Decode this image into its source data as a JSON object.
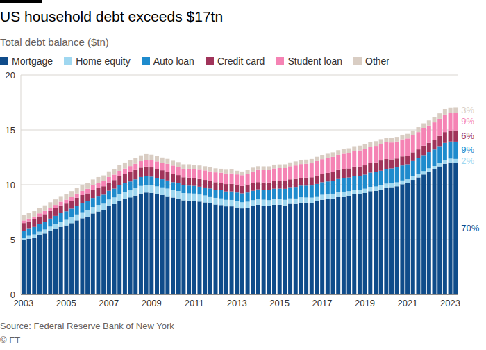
{
  "chart_data": {
    "type": "bar",
    "stacked": true,
    "grid": true,
    "title": "US household debt exceeds $17tn",
    "subtitle": "Total debt balance ($tn)",
    "source": "Source: Federal Reserve Bank of New York",
    "copyright": "© FT",
    "categories": [
      "2003",
      null,
      null,
      null,
      null,
      null,
      null,
      null,
      "2005",
      null,
      null,
      null,
      null,
      null,
      null,
      null,
      "2007",
      null,
      null,
      null,
      null,
      null,
      null,
      null,
      "2009",
      null,
      null,
      null,
      null,
      null,
      null,
      null,
      "2011",
      null,
      null,
      null,
      null,
      null,
      null,
      null,
      "2013",
      null,
      null,
      null,
      null,
      null,
      null,
      null,
      "2015",
      null,
      null,
      null,
      null,
      null,
      null,
      null,
      "2017",
      null,
      null,
      null,
      null,
      null,
      null,
      null,
      "2019",
      null,
      null,
      null,
      null,
      null,
      null,
      null,
      "2021",
      null,
      null,
      null,
      null,
      null,
      null,
      null,
      "2023",
      null
    ],
    "ylim": [
      0,
      20
    ],
    "yticks": [
      0,
      5,
      10,
      15,
      20
    ],
    "series": [
      {
        "name": "Mortgage",
        "color": "#0f4c8a",
        "values": [
          4.94,
          5.08,
          5.18,
          5.39,
          5.55,
          5.77,
          5.97,
          6.16,
          6.29,
          6.5,
          6.75,
          6.94,
          7.11,
          7.38,
          7.56,
          7.67,
          8.05,
          8.23,
          8.52,
          8.68,
          8.84,
          9.01,
          9.2,
          9.29,
          9.25,
          9.14,
          9.06,
          8.95,
          8.83,
          8.75,
          8.57,
          8.55,
          8.54,
          8.46,
          8.39,
          8.31,
          8.19,
          8.15,
          8.03,
          8.03,
          7.93,
          7.84,
          7.9,
          8.05,
          8.17,
          8.1,
          8.07,
          8.17,
          8.17,
          8.12,
          8.26,
          8.25,
          8.37,
          8.36,
          8.35,
          8.48,
          8.63,
          8.69,
          8.74,
          8.88,
          8.94,
          9.0,
          9.14,
          9.12,
          9.24,
          9.41,
          9.44,
          9.56,
          9.71,
          9.78,
          9.86,
          10.04,
          10.16,
          10.44,
          10.67,
          10.93,
          11.18,
          11.39,
          11.67,
          11.92,
          12.04,
          12.01
        ]
      },
      {
        "name": "Home equity",
        "color": "#9fd7f0",
        "values": [
          0.24,
          0.26,
          0.29,
          0.33,
          0.37,
          0.41,
          0.44,
          0.48,
          0.51,
          0.53,
          0.54,
          0.55,
          0.57,
          0.59,
          0.6,
          0.6,
          0.6,
          0.61,
          0.62,
          0.63,
          0.65,
          0.67,
          0.69,
          0.71,
          0.71,
          0.71,
          0.7,
          0.7,
          0.69,
          0.68,
          0.67,
          0.66,
          0.65,
          0.64,
          0.63,
          0.62,
          0.61,
          0.6,
          0.59,
          0.58,
          0.57,
          0.56,
          0.55,
          0.54,
          0.53,
          0.53,
          0.52,
          0.51,
          0.51,
          0.5,
          0.49,
          0.49,
          0.48,
          0.47,
          0.47,
          0.46,
          0.45,
          0.44,
          0.44,
          0.43,
          0.43,
          0.42,
          0.42,
          0.41,
          0.4,
          0.4,
          0.4,
          0.39,
          0.39,
          0.37,
          0.36,
          0.35,
          0.34,
          0.33,
          0.32,
          0.32,
          0.32,
          0.32,
          0.33,
          0.34,
          0.34,
          0.34
        ]
      },
      {
        "name": "Auto loan",
        "color": "#1e8bcd",
        "values": [
          0.64,
          0.64,
          0.68,
          0.7,
          0.72,
          0.73,
          0.75,
          0.77,
          0.78,
          0.79,
          0.81,
          0.82,
          0.81,
          0.82,
          0.82,
          0.82,
          0.8,
          0.81,
          0.82,
          0.82,
          0.81,
          0.81,
          0.81,
          0.79,
          0.78,
          0.76,
          0.74,
          0.74,
          0.71,
          0.71,
          0.71,
          0.71,
          0.71,
          0.72,
          0.73,
          0.73,
          0.75,
          0.76,
          0.77,
          0.78,
          0.79,
          0.81,
          0.84,
          0.86,
          0.88,
          0.91,
          0.94,
          0.96,
          0.97,
          1.01,
          1.03,
          1.06,
          1.07,
          1.09,
          1.11,
          1.13,
          1.15,
          1.17,
          1.19,
          1.21,
          1.22,
          1.24,
          1.26,
          1.27,
          1.28,
          1.3,
          1.32,
          1.33,
          1.35,
          1.34,
          1.36,
          1.37,
          1.37,
          1.39,
          1.43,
          1.45,
          1.47,
          1.5,
          1.52,
          1.55,
          1.56,
          1.58
        ]
      },
      {
        "name": "Credit card",
        "color": "#a0345a",
        "values": [
          0.69,
          0.69,
          0.69,
          0.7,
          0.68,
          0.69,
          0.69,
          0.71,
          0.7,
          0.71,
          0.71,
          0.74,
          0.72,
          0.74,
          0.75,
          0.77,
          0.76,
          0.78,
          0.8,
          0.82,
          0.84,
          0.85,
          0.86,
          0.87,
          0.84,
          0.84,
          0.82,
          0.8,
          0.76,
          0.74,
          0.73,
          0.73,
          0.7,
          0.7,
          0.69,
          0.7,
          0.68,
          0.68,
          0.67,
          0.68,
          0.66,
          0.67,
          0.67,
          0.68,
          0.66,
          0.67,
          0.67,
          0.69,
          0.68,
          0.7,
          0.71,
          0.73,
          0.71,
          0.73,
          0.75,
          0.78,
          0.76,
          0.78,
          0.81,
          0.83,
          0.82,
          0.83,
          0.84,
          0.87,
          0.85,
          0.87,
          0.88,
          0.93,
          0.89,
          0.82,
          0.81,
          0.82,
          0.77,
          0.79,
          0.8,
          0.86,
          0.84,
          0.89,
          0.93,
          0.99,
          0.99,
          1.03
        ]
      },
      {
        "name": "Student loan",
        "color": "#f583b4",
        "values": [
          0.24,
          0.25,
          0.26,
          0.27,
          0.29,
          0.3,
          0.31,
          0.33,
          0.36,
          0.37,
          0.38,
          0.39,
          0.43,
          0.44,
          0.45,
          0.46,
          0.49,
          0.49,
          0.51,
          0.53,
          0.56,
          0.57,
          0.59,
          0.61,
          0.66,
          0.68,
          0.7,
          0.72,
          0.76,
          0.76,
          0.78,
          0.81,
          0.84,
          0.85,
          0.87,
          0.87,
          0.9,
          0.91,
          0.96,
          0.97,
          0.99,
          0.99,
          1.03,
          1.08,
          1.11,
          1.12,
          1.13,
          1.16,
          1.19,
          1.19,
          1.2,
          1.23,
          1.26,
          1.26,
          1.28,
          1.31,
          1.34,
          1.34,
          1.36,
          1.38,
          1.41,
          1.41,
          1.44,
          1.46,
          1.49,
          1.48,
          1.5,
          1.51,
          1.54,
          1.54,
          1.55,
          1.56,
          1.58,
          1.57,
          1.58,
          1.58,
          1.59,
          1.59,
          1.57,
          1.6,
          1.6,
          1.57
        ]
      },
      {
        "name": "Other",
        "color": "#d9cdc3",
        "values": [
          0.48,
          0.49,
          0.49,
          0.51,
          0.51,
          0.5,
          0.5,
          0.51,
          0.5,
          0.52,
          0.52,
          0.53,
          0.52,
          0.51,
          0.52,
          0.53,
          0.52,
          0.52,
          0.54,
          0.55,
          0.53,
          0.53,
          0.53,
          0.52,
          0.5,
          0.49,
          0.46,
          0.45,
          0.44,
          0.43,
          0.41,
          0.41,
          0.39,
          0.39,
          0.38,
          0.38,
          0.37,
          0.36,
          0.35,
          0.35,
          0.34,
          0.34,
          0.34,
          0.35,
          0.34,
          0.35,
          0.35,
          0.35,
          0.34,
          0.35,
          0.35,
          0.37,
          0.37,
          0.38,
          0.39,
          0.39,
          0.39,
          0.4,
          0.41,
          0.42,
          0.41,
          0.42,
          0.42,
          0.43,
          0.42,
          0.42,
          0.43,
          0.43,
          0.42,
          0.42,
          0.42,
          0.42,
          0.42,
          0.43,
          0.45,
          0.46,
          0.47,
          0.48,
          0.49,
          0.5,
          0.51,
          0.53
        ]
      }
    ],
    "annotations": [
      {
        "series": "Other",
        "text": "3%"
      },
      {
        "series": "Student loan",
        "text": "9%"
      },
      {
        "series": "Credit card",
        "text": "6%"
      },
      {
        "series": "Auto loan",
        "text": "9%"
      },
      {
        "series": "Home equity",
        "text": "2%"
      },
      {
        "series": "Mortgage",
        "text": "70%"
      }
    ]
  }
}
